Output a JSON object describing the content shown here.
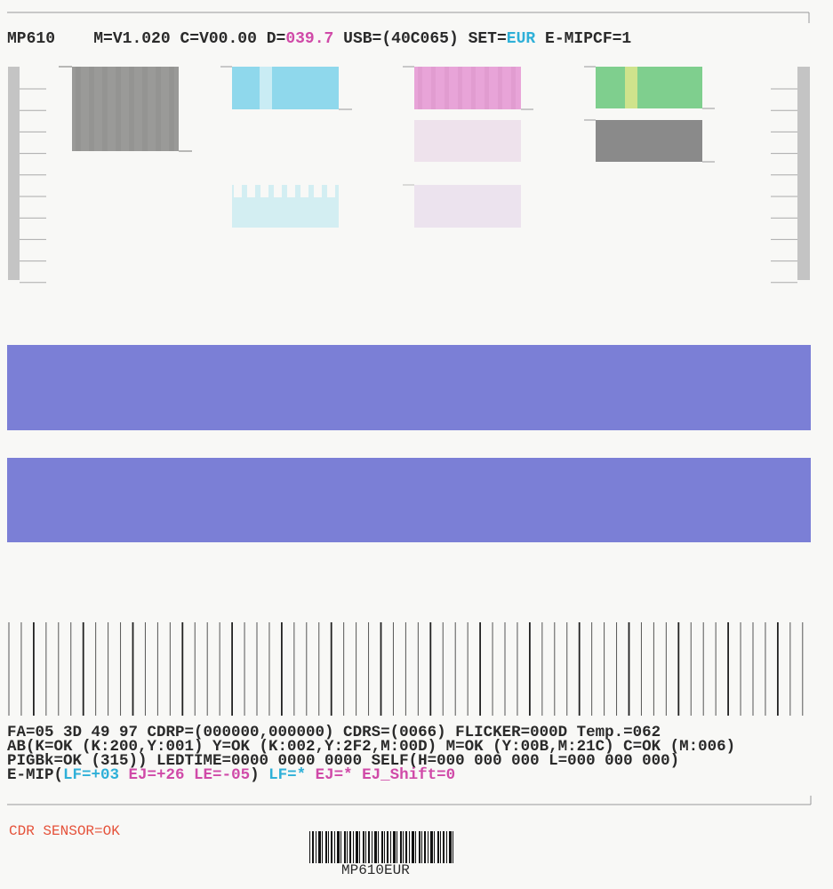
{
  "header": {
    "model": "MP610",
    "fields": [
      "M=V1.020",
      "C=V00.00",
      "D=",
      "039.7",
      "USB=(40C065)",
      "SET=",
      "EUR",
      "E-MIPCF=1"
    ]
  },
  "status": {
    "lines": [
      "FA=05 3D 49 97 CDRP=(000000,000000) CDRS=(0066) FLICKER=000D Temp.=062",
      "AB(K=OK (K:200,Y:001) Y=OK (K:002,Y:2F2,M:00D) M=OK (Y:00B,M:21C) C=OK (M:006)",
      "PIGBk=OK (315)) LEDTIME=0000 0000 0000 SELF(H=000 000 000 L=000 000 000)"
    ],
    "emip": [
      "E-MIP(",
      "LF=+03",
      "EJ=+26 LE=-05",
      ")",
      "LF=*",
      "EJ=* EJ_Shift=0"
    ]
  },
  "footer": {
    "sensor": "CDR SENSOR=OK",
    "barcode_label": "MP610EUR"
  }
}
